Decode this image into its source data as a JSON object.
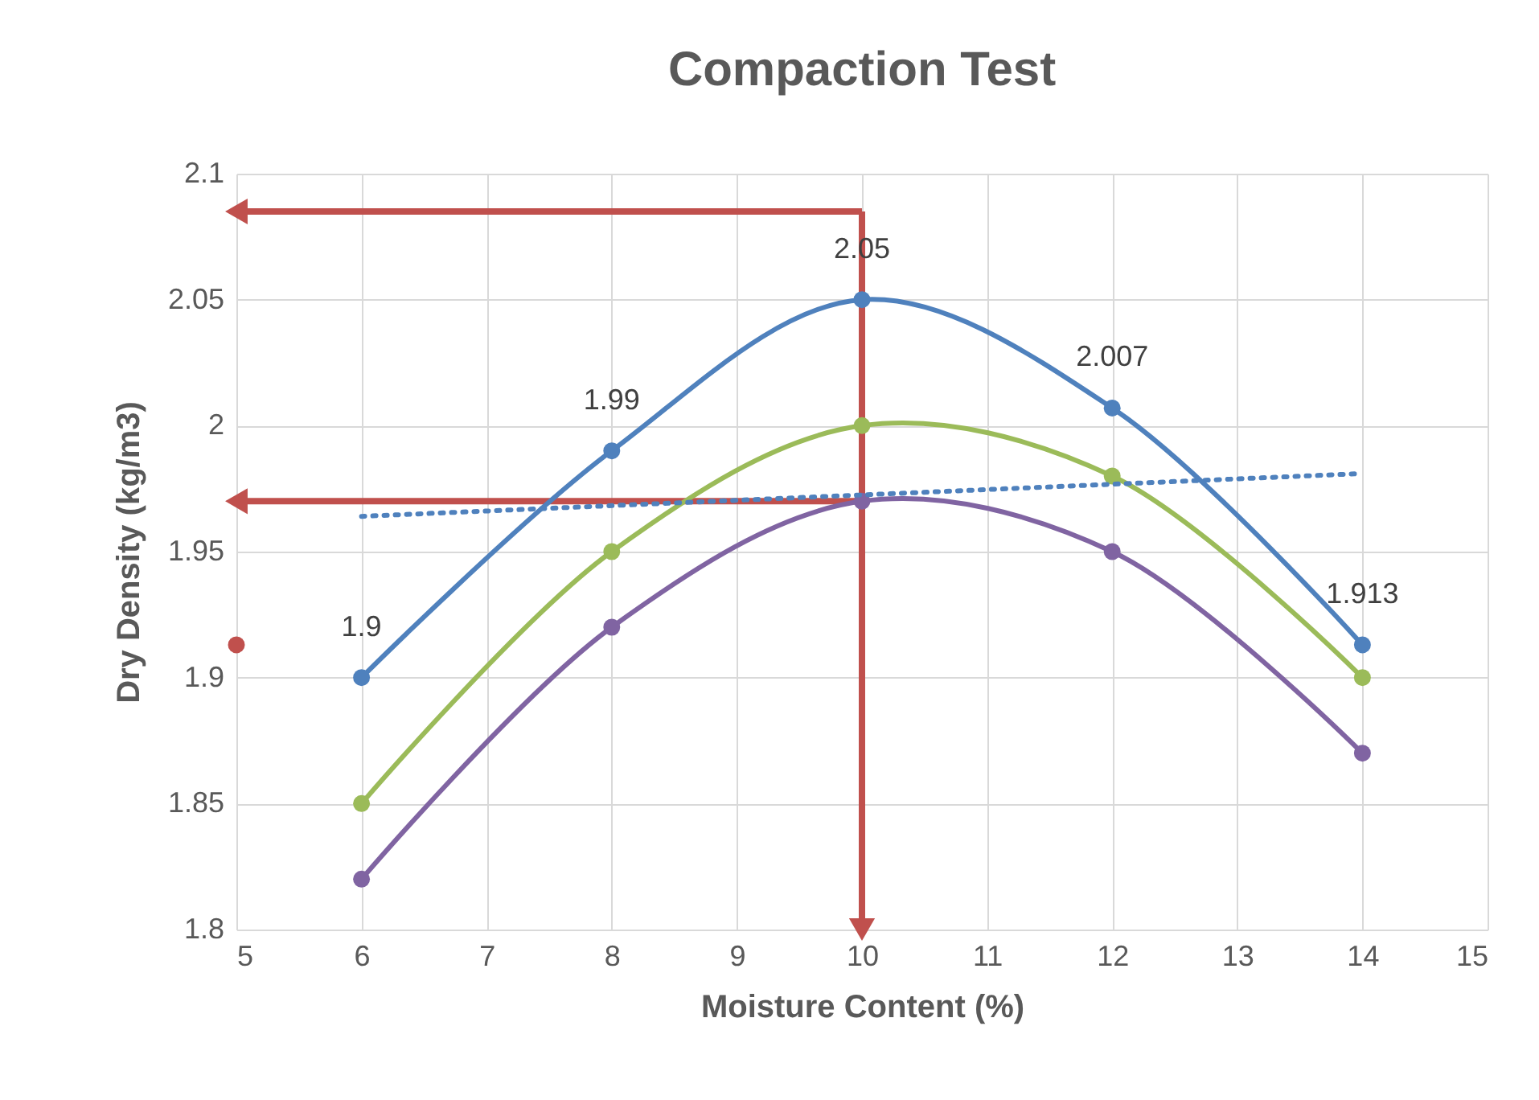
{
  "chart_data": {
    "type": "line",
    "title": "Compaction Test",
    "xlabel": "Moisture Content (%)",
    "ylabel": "Dry Density (kg/m3)",
    "x": [
      6,
      8,
      10,
      12,
      14
    ],
    "series": [
      {
        "color": "#4f81bd",
        "values": [
          1.9,
          1.99,
          2.05,
          2.007,
          1.913
        ],
        "value_labels": [
          "1.9",
          "1.99",
          "2.05",
          "2.007",
          "1.913"
        ]
      },
      {
        "color": "#9bbb59",
        "values": [
          1.85,
          1.95,
          2.0,
          1.98,
          1.9
        ]
      },
      {
        "color": "#8064a2",
        "values": [
          1.82,
          1.92,
          1.97,
          1.95,
          1.87
        ]
      },
      {
        "type": "line",
        "color": "#4f81bd",
        "x": [
          6,
          14
        ],
        "values": [
          1.964,
          1.981
        ],
        "line_style": "dotted",
        "marker": "none"
      },
      {
        "type": "scatter",
        "color": "#c0504d",
        "x": [
          5
        ],
        "values": [
          1.913
        ]
      }
    ],
    "ref_lines": [
      {
        "axis": "x",
        "value": 10,
        "color": "#c0504d"
      },
      {
        "axis": "y",
        "value": 2.085,
        "color": "#c0504d"
      },
      {
        "axis": "y",
        "value": 1.97,
        "color": "#c0504d"
      }
    ],
    "xlim": [
      5,
      15
    ],
    "xticks": [
      5,
      6,
      7,
      8,
      9,
      10,
      11,
      12,
      13,
      14,
      15
    ],
    "ylim": [
      1.8,
      2.1
    ],
    "yticks": [
      1.8,
      1.85,
      1.9,
      1.95,
      2,
      2.05,
      2.1
    ],
    "grid": true,
    "marker": "circle",
    "line_style": "solid"
  }
}
